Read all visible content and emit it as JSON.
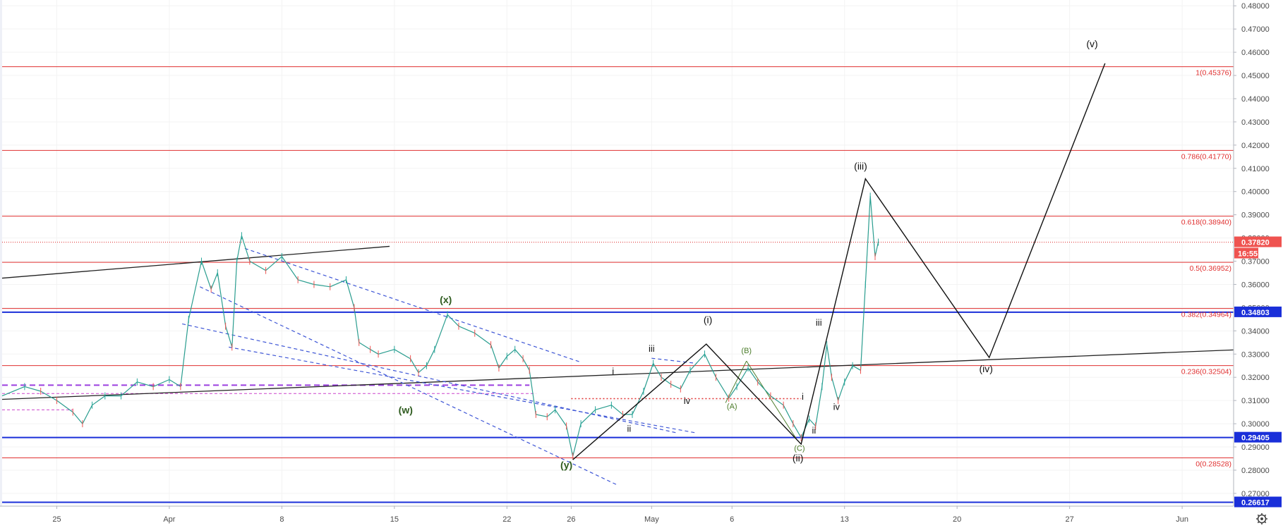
{
  "chart_data": {
    "type": "line",
    "price_axis": {
      "ticks": [
        "0.48000",
        "0.47000",
        "0.46000",
        "0.45000",
        "0.44000",
        "0.43000",
        "0.42000",
        "0.41000",
        "0.40000",
        "0.39000",
        "0.38000",
        "0.37000",
        "0.36000",
        "0.35000",
        "0.34000",
        "0.33000",
        "0.32000",
        "0.31000",
        "0.30000",
        "0.29000",
        "0.28000",
        "0.27000"
      ],
      "tick_values": [
        0.48,
        0.47,
        0.46,
        0.45,
        0.44,
        0.43,
        0.42,
        0.41,
        0.4,
        0.39,
        0.38,
        0.37,
        0.36,
        0.35,
        0.34,
        0.33,
        0.32,
        0.31,
        0.3,
        0.29,
        0.28,
        0.27
      ],
      "ylim": [
        0.2645,
        0.4825
      ]
    },
    "time_axis": {
      "labels": [
        "25",
        "Apr",
        "8",
        "15",
        "22",
        "26",
        "May",
        "6",
        "13",
        "20",
        "27",
        "Jun"
      ],
      "label_days": [
        -7,
        0,
        7,
        14,
        21,
        25,
        30,
        35,
        42,
        49,
        56,
        63
      ],
      "xlim": [
        -10.4,
        66.2
      ]
    },
    "fib_levels": [
      {
        "label": "1(0.45376)",
        "value": 0.45376
      },
      {
        "label": "0.786(0.41770)",
        "value": 0.4177
      },
      {
        "label": "0.618(0.38940)",
        "value": 0.3894
      },
      {
        "label": "0.5(0.36952)",
        "value": 0.36952
      },
      {
        "label": "0.382(0.34964)",
        "value": 0.34964
      },
      {
        "label": "0.236(0.32504)",
        "value": 0.32504
      },
      {
        "label": "0(0.28528)",
        "value": 0.28528
      }
    ],
    "blue_levels": [
      {
        "label": "0.34803",
        "value": 0.34803
      },
      {
        "label": "0.29405",
        "value": 0.29405
      },
      {
        "label": "0.26617",
        "value": 0.26617
      }
    ],
    "last_price": {
      "label": "0.37820",
      "value": 0.3782,
      "countdown": "16:55"
    },
    "wave_labels": [
      {
        "text": "(x)",
        "day": 17.2,
        "value": 0.352,
        "style": "green"
      },
      {
        "text": "(w)",
        "day": 14.7,
        "value": 0.3044,
        "style": "green"
      },
      {
        "text": "(y)",
        "day": 24.7,
        "value": 0.2808,
        "style": "green"
      },
      {
        "text": "i",
        "day": 27.6,
        "value": 0.3213,
        "style": "small"
      },
      {
        "text": "ii",
        "day": 28.6,
        "value": 0.2965,
        "style": "small"
      },
      {
        "text": "iii",
        "day": 30.0,
        "value": 0.331,
        "style": "small"
      },
      {
        "text": "iv",
        "day": 32.2,
        "value": 0.3085,
        "style": "small"
      },
      {
        "text": "(i)",
        "day": 33.5,
        "value": 0.3433,
        "style": "black"
      },
      {
        "text": "(B)",
        "day": 35.9,
        "value": 0.3304,
        "style": "gsmall"
      },
      {
        "text": "(A)",
        "day": 35.0,
        "value": 0.3064,
        "style": "gsmall"
      },
      {
        "text": "(C)",
        "day": 39.2,
        "value": 0.2884,
        "style": "gsmall"
      },
      {
        "text": "(ii)",
        "day": 39.1,
        "value": 0.2838,
        "style": "black"
      },
      {
        "text": "i",
        "day": 39.4,
        "value": 0.3103,
        "style": "small"
      },
      {
        "text": "ii",
        "day": 40.1,
        "value": 0.2958,
        "style": "small"
      },
      {
        "text": "iii",
        "day": 40.4,
        "value": 0.3422,
        "style": "small"
      },
      {
        "text": "iv",
        "day": 41.5,
        "value": 0.306,
        "style": "small"
      },
      {
        "text": "(iii)",
        "day": 43.0,
        "value": 0.4095,
        "style": "black"
      },
      {
        "text": "(iv)",
        "day": 50.8,
        "value": 0.3222,
        "style": "black"
      },
      {
        "text": "(v)",
        "day": 57.4,
        "value": 0.4622,
        "style": "black"
      }
    ],
    "projection_path": [
      {
        "day": 25.1,
        "value": 0.2845
      },
      {
        "day": 33.4,
        "value": 0.3343
      },
      {
        "day": 39.3,
        "value": 0.2912
      },
      {
        "day": 43.3,
        "value": 0.4055
      },
      {
        "day": 51.0,
        "value": 0.3285
      },
      {
        "day": 58.2,
        "value": 0.4552
      }
    ],
    "price_series": [
      {
        "day": -10.4,
        "value": 0.312
      },
      {
        "day": -9.0,
        "value": 0.316
      },
      {
        "day": -8.0,
        "value": 0.314
      },
      {
        "day": -7.0,
        "value": 0.31
      },
      {
        "day": -6.0,
        "value": 0.305
      },
      {
        "day": -5.4,
        "value": 0.3
      },
      {
        "day": -4.8,
        "value": 0.308
      },
      {
        "day": -4.0,
        "value": 0.312
      },
      {
        "day": -3.0,
        "value": 0.312
      },
      {
        "day": -2.0,
        "value": 0.318
      },
      {
        "day": -1.0,
        "value": 0.316
      },
      {
        "day": 0.0,
        "value": 0.319
      },
      {
        "day": 0.7,
        "value": 0.316
      },
      {
        "day": 1.2,
        "value": 0.345
      },
      {
        "day": 2.0,
        "value": 0.37
      },
      {
        "day": 2.6,
        "value": 0.358
      },
      {
        "day": 3.0,
        "value": 0.365
      },
      {
        "day": 3.5,
        "value": 0.342
      },
      {
        "day": 3.9,
        "value": 0.333
      },
      {
        "day": 4.2,
        "value": 0.37
      },
      {
        "day": 4.5,
        "value": 0.381
      },
      {
        "day": 5.0,
        "value": 0.37
      },
      {
        "day": 6.0,
        "value": 0.366
      },
      {
        "day": 7.0,
        "value": 0.372
      },
      {
        "day": 8.0,
        "value": 0.362
      },
      {
        "day": 9.0,
        "value": 0.36
      },
      {
        "day": 10.0,
        "value": 0.359
      },
      {
        "day": 11.0,
        "value": 0.362
      },
      {
        "day": 11.5,
        "value": 0.35
      },
      {
        "day": 11.8,
        "value": 0.335
      },
      {
        "day": 12.5,
        "value": 0.332
      },
      {
        "day": 13.0,
        "value": 0.33
      },
      {
        "day": 14.0,
        "value": 0.332
      },
      {
        "day": 15.0,
        "value": 0.328
      },
      {
        "day": 15.5,
        "value": 0.322
      },
      {
        "day": 16.0,
        "value": 0.325
      },
      {
        "day": 16.5,
        "value": 0.332
      },
      {
        "day": 17.3,
        "value": 0.347
      },
      {
        "day": 18.0,
        "value": 0.342
      },
      {
        "day": 19.0,
        "value": 0.339
      },
      {
        "day": 20.0,
        "value": 0.334
      },
      {
        "day": 20.5,
        "value": 0.324
      },
      {
        "day": 21.0,
        "value": 0.329
      },
      {
        "day": 21.5,
        "value": 0.332
      },
      {
        "day": 22.0,
        "value": 0.328
      },
      {
        "day": 22.4,
        "value": 0.323
      },
      {
        "day": 22.8,
        "value": 0.304
      },
      {
        "day": 23.5,
        "value": 0.303
      },
      {
        "day": 24.0,
        "value": 0.306
      },
      {
        "day": 24.7,
        "value": 0.299
      },
      {
        "day": 25.1,
        "value": 0.286
      },
      {
        "day": 25.6,
        "value": 0.3
      },
      {
        "day": 26.5,
        "value": 0.306
      },
      {
        "day": 27.5,
        "value": 0.308
      },
      {
        "day": 28.2,
        "value": 0.304
      },
      {
        "day": 28.8,
        "value": 0.304
      },
      {
        "day": 29.5,
        "value": 0.314
      },
      {
        "day": 30.1,
        "value": 0.326
      },
      {
        "day": 30.6,
        "value": 0.32
      },
      {
        "day": 31.2,
        "value": 0.317
      },
      {
        "day": 31.8,
        "value": 0.315
      },
      {
        "day": 32.4,
        "value": 0.323
      },
      {
        "day": 33.3,
        "value": 0.33
      },
      {
        "day": 34.0,
        "value": 0.32
      },
      {
        "day": 34.8,
        "value": 0.311
      },
      {
        "day": 35.3,
        "value": 0.316
      },
      {
        "day": 36.0,
        "value": 0.324
      },
      {
        "day": 36.6,
        "value": 0.318
      },
      {
        "day": 37.4,
        "value": 0.312
      },
      {
        "day": 38.2,
        "value": 0.308
      },
      {
        "day": 38.8,
        "value": 0.3
      },
      {
        "day": 39.3,
        "value": 0.294
      },
      {
        "day": 39.8,
        "value": 0.302
      },
      {
        "day": 40.2,
        "value": 0.299
      },
      {
        "day": 40.6,
        "value": 0.316
      },
      {
        "day": 40.9,
        "value": 0.334
      },
      {
        "day": 41.2,
        "value": 0.32
      },
      {
        "day": 41.6,
        "value": 0.31
      },
      {
        "day": 42.0,
        "value": 0.318
      },
      {
        "day": 42.5,
        "value": 0.325
      },
      {
        "day": 43.0,
        "value": 0.323
      },
      {
        "day": 43.3,
        "value": 0.36
      },
      {
        "day": 43.6,
        "value": 0.398
      },
      {
        "day": 43.9,
        "value": 0.372
      },
      {
        "day": 44.1,
        "value": 0.3782
      }
    ],
    "trend_lines": [
      {
        "from": {
          "day": -10.4,
          "value": 0.3627
        },
        "to": {
          "day": 13.7,
          "value": 0.3764
        },
        "color": "#222222",
        "dash": "",
        "width": 1.3
      },
      {
        "from": {
          "day": -10.4,
          "value": 0.3105
        },
        "to": {
          "day": 66.2,
          "value": 0.3318
        },
        "color": "#222222",
        "dash": "",
        "width": 1.3
      },
      {
        "from": {
          "day": 4.7,
          "value": 0.3755
        },
        "to": {
          "day": 25.6,
          "value": 0.3265
        },
        "color": "#3d55d6",
        "dash": "5,4",
        "width": 1.2
      },
      {
        "from": {
          "day": 1.9,
          "value": 0.359
        },
        "to": {
          "day": 27.9,
          "value": 0.2735
        },
        "color": "#3d55d6",
        "dash": "5,4",
        "width": 1.2
      },
      {
        "from": {
          "day": 0.8,
          "value": 0.343
        },
        "to": {
          "day": 31.6,
          "value": 0.296
        },
        "color": "#3d55d6",
        "dash": "5,4",
        "width": 1.2
      },
      {
        "from": {
          "day": 3.7,
          "value": 0.333
        },
        "to": {
          "day": 32.8,
          "value": 0.296
        },
        "color": "#3d55d6",
        "dash": "5,4",
        "width": 1.2
      },
      {
        "from": {
          "day": 30.0,
          "value": 0.3282
        },
        "to": {
          "day": 32.8,
          "value": 0.326
        },
        "color": "#3d55d6",
        "dash": "5,4",
        "width": 1.2
      },
      {
        "from": {
          "day": 34.6,
          "value": 0.309
        },
        "to": {
          "day": 35.9,
          "value": 0.327
        },
        "color": "#4b7c2a",
        "dash": "",
        "width": 1.0
      },
      {
        "from": {
          "day": 35.9,
          "value": 0.327
        },
        "to": {
          "day": 39.0,
          "value": 0.2935
        },
        "color": "#4b7c2a",
        "dash": "",
        "width": 1.0
      }
    ],
    "dashed_levels": [
      {
        "from_day": -10.4,
        "to_day": 22.4,
        "value": 0.3166,
        "color": "#9b3fe0",
        "dash": "8,5",
        "width": 2.0
      },
      {
        "from_day": -10.4,
        "to_day": 22.8,
        "value": 0.313,
        "color": "#cc44cc",
        "dash": "4,3",
        "width": 1.0
      },
      {
        "from_day": -10.4,
        "to_day": -6.0,
        "value": 0.306,
        "color": "#cc44cc",
        "dash": "4,3",
        "width": 1.0
      },
      {
        "from_day": 25.0,
        "to_day": 39.3,
        "value": 0.3108,
        "color": "#e03030",
        "dash": "2,3",
        "width": 1.5
      }
    ]
  }
}
